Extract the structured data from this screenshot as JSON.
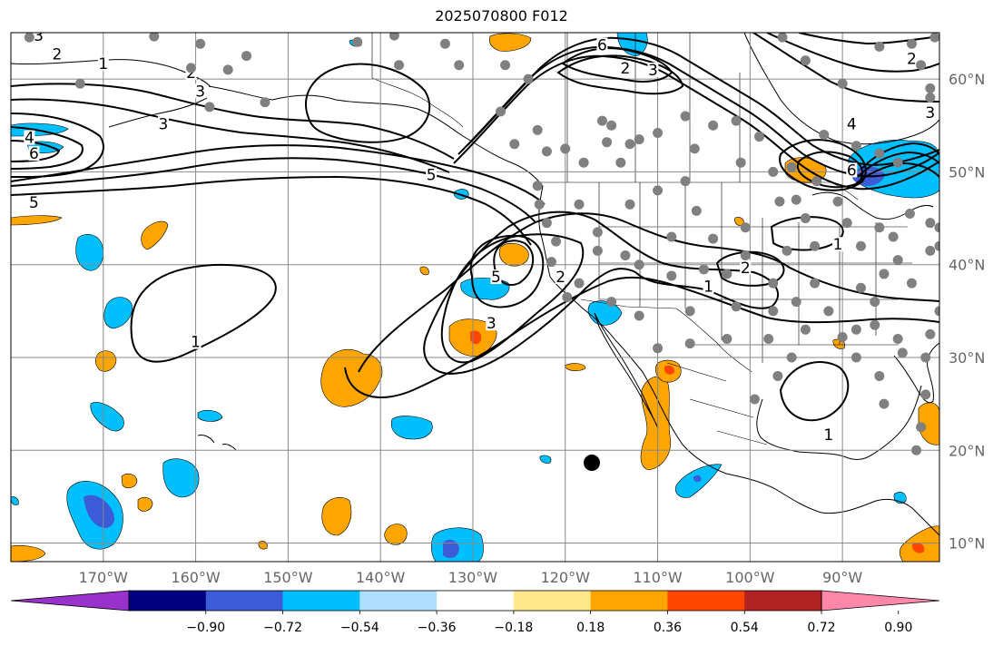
{
  "title": "2025070800 F012",
  "map": {
    "lon_min": -180,
    "lon_max": -79.5,
    "lat_min": 8,
    "lat_max": 65,
    "lon_ticks": [
      -170,
      -160,
      -150,
      -140,
      -130,
      -120,
      -110,
      -100,
      -90
    ],
    "lon_tick_labels": [
      "170°W",
      "160°W",
      "150°W",
      "140°W",
      "130°W",
      "120°W",
      "110°W",
      "100°W",
      "90°W"
    ],
    "lat_ticks": [
      10,
      20,
      30,
      40,
      50,
      60
    ],
    "lat_tick_labels": [
      "10°N",
      "20°N",
      "30°N",
      "40°N",
      "50°N",
      "60°N"
    ],
    "grid": true,
    "contour_labels": [
      {
        "text": "3",
        "lon": -177,
        "lat": 64.5
      },
      {
        "text": "2",
        "lon": -175,
        "lat": 62.5
      },
      {
        "text": "1",
        "lon": -170,
        "lat": 61.5
      },
      {
        "text": "2",
        "lon": -160.5,
        "lat": 60.5
      },
      {
        "text": "3",
        "lon": -159.5,
        "lat": 58.5
      },
      {
        "text": "3",
        "lon": -163.5,
        "lat": 55
      },
      {
        "text": "4",
        "lon": -178,
        "lat": 53.5
      },
      {
        "text": "6",
        "lon": -177.5,
        "lat": 51.8
      },
      {
        "text": "5",
        "lon": -177.5,
        "lat": 46.5
      },
      {
        "text": "5",
        "lon": -134.5,
        "lat": 49.5
      },
      {
        "text": "6",
        "lon": -116,
        "lat": 63.5
      },
      {
        "text": "2",
        "lon": -113.5,
        "lat": 61
      },
      {
        "text": "3",
        "lon": -110.5,
        "lat": 60.8
      },
      {
        "text": "2",
        "lon": -82.5,
        "lat": 62
      },
      {
        "text": "4",
        "lon": -89,
        "lat": 55
      },
      {
        "text": "3",
        "lon": -80.5,
        "lat": 56.2
      },
      {
        "text": "6",
        "lon": -89,
        "lat": 50
      },
      {
        "text": "1",
        "lon": -90.5,
        "lat": 42
      },
      {
        "text": "2",
        "lon": -100.5,
        "lat": 39.5
      },
      {
        "text": "1",
        "lon": -104.5,
        "lat": 37.5
      },
      {
        "text": "5",
        "lon": -127.5,
        "lat": 38.5
      },
      {
        "text": "2",
        "lon": -120.5,
        "lat": 38.5
      },
      {
        "text": "3",
        "lon": -128,
        "lat": 33.5
      },
      {
        "text": "1",
        "lon": -160,
        "lat": 31.5
      },
      {
        "text": "1",
        "lon": -91.5,
        "lat": 21.5
      }
    ],
    "dot_color": "#808080",
    "positive_fill_colors": [
      "#fde98b",
      "#ffa500",
      "#ff4500",
      "#b22222",
      "#ff88aa"
    ],
    "negative_fill_colors": [
      "#afdfff",
      "#00bfff",
      "#3b5cd6",
      "#000080",
      "#9932cc"
    ]
  },
  "colorbar": {
    "boundaries": [
      -0.9,
      -0.72,
      -0.54,
      -0.36,
      -0.18,
      0.18,
      0.36,
      0.54,
      0.72,
      0.9
    ],
    "tick_labels": [
      "−0.90",
      "−0.72",
      "−0.54",
      "−0.36",
      "−0.18",
      "0.18",
      "0.36",
      "0.54",
      "0.72",
      "0.90"
    ],
    "colors": [
      "#9932cc",
      "#000080",
      "#3b5cd6",
      "#00bfff",
      "#afdfff",
      "#ffffff",
      "#fde98b",
      "#ffa500",
      "#ff4500",
      "#b22222",
      "#ff88aa"
    ]
  }
}
